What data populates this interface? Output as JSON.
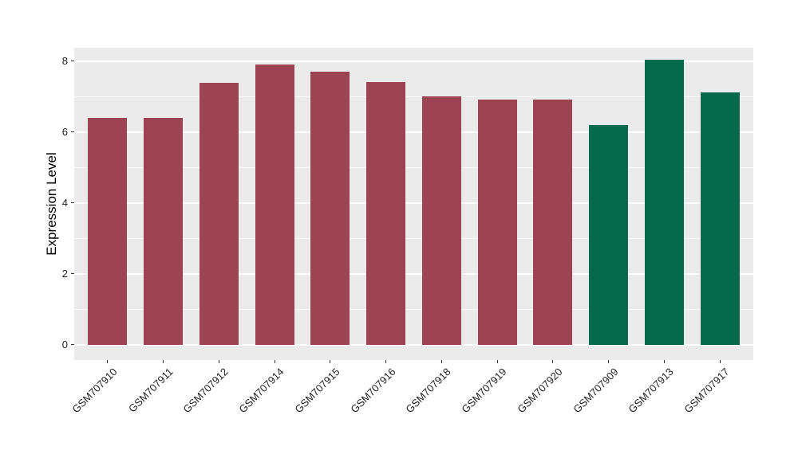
{
  "chart_data": {
    "type": "bar",
    "title": "",
    "xlabel": "",
    "ylabel": "Expression Level",
    "categories": [
      "GSM707910",
      "GSM707911",
      "GSM707912",
      "GSM707914",
      "GSM707915",
      "GSM707916",
      "GSM707918",
      "GSM707919",
      "GSM707920",
      "GSM707909",
      "GSM707913",
      "GSM707917"
    ],
    "values": [
      6.41,
      6.41,
      7.4,
      7.91,
      7.7,
      7.41,
      7.0,
      6.93,
      6.93,
      6.19,
      8.05,
      7.12
    ],
    "bar_groups": [
      "red",
      "red",
      "red",
      "red",
      "red",
      "red",
      "red",
      "red",
      "red",
      "green",
      "green",
      "green"
    ],
    "group_colors": {
      "red": "#9C4451",
      "green": "#056A4B"
    },
    "yticks": [
      0,
      2,
      4,
      6,
      8
    ],
    "minor_gridlines": [
      1,
      3,
      5,
      7
    ],
    "ylim": [
      -0.43,
      8.38
    ],
    "bar_width_ratio": 0.7,
    "grid": true,
    "legend_position": "none",
    "panel_background": "#EBEBEB",
    "major_gridline_color": "#FFFFFF",
    "tick_label_color": "#1f1f1f",
    "axis_title_color": "#000000",
    "x_label_angle_degrees": 45
  }
}
